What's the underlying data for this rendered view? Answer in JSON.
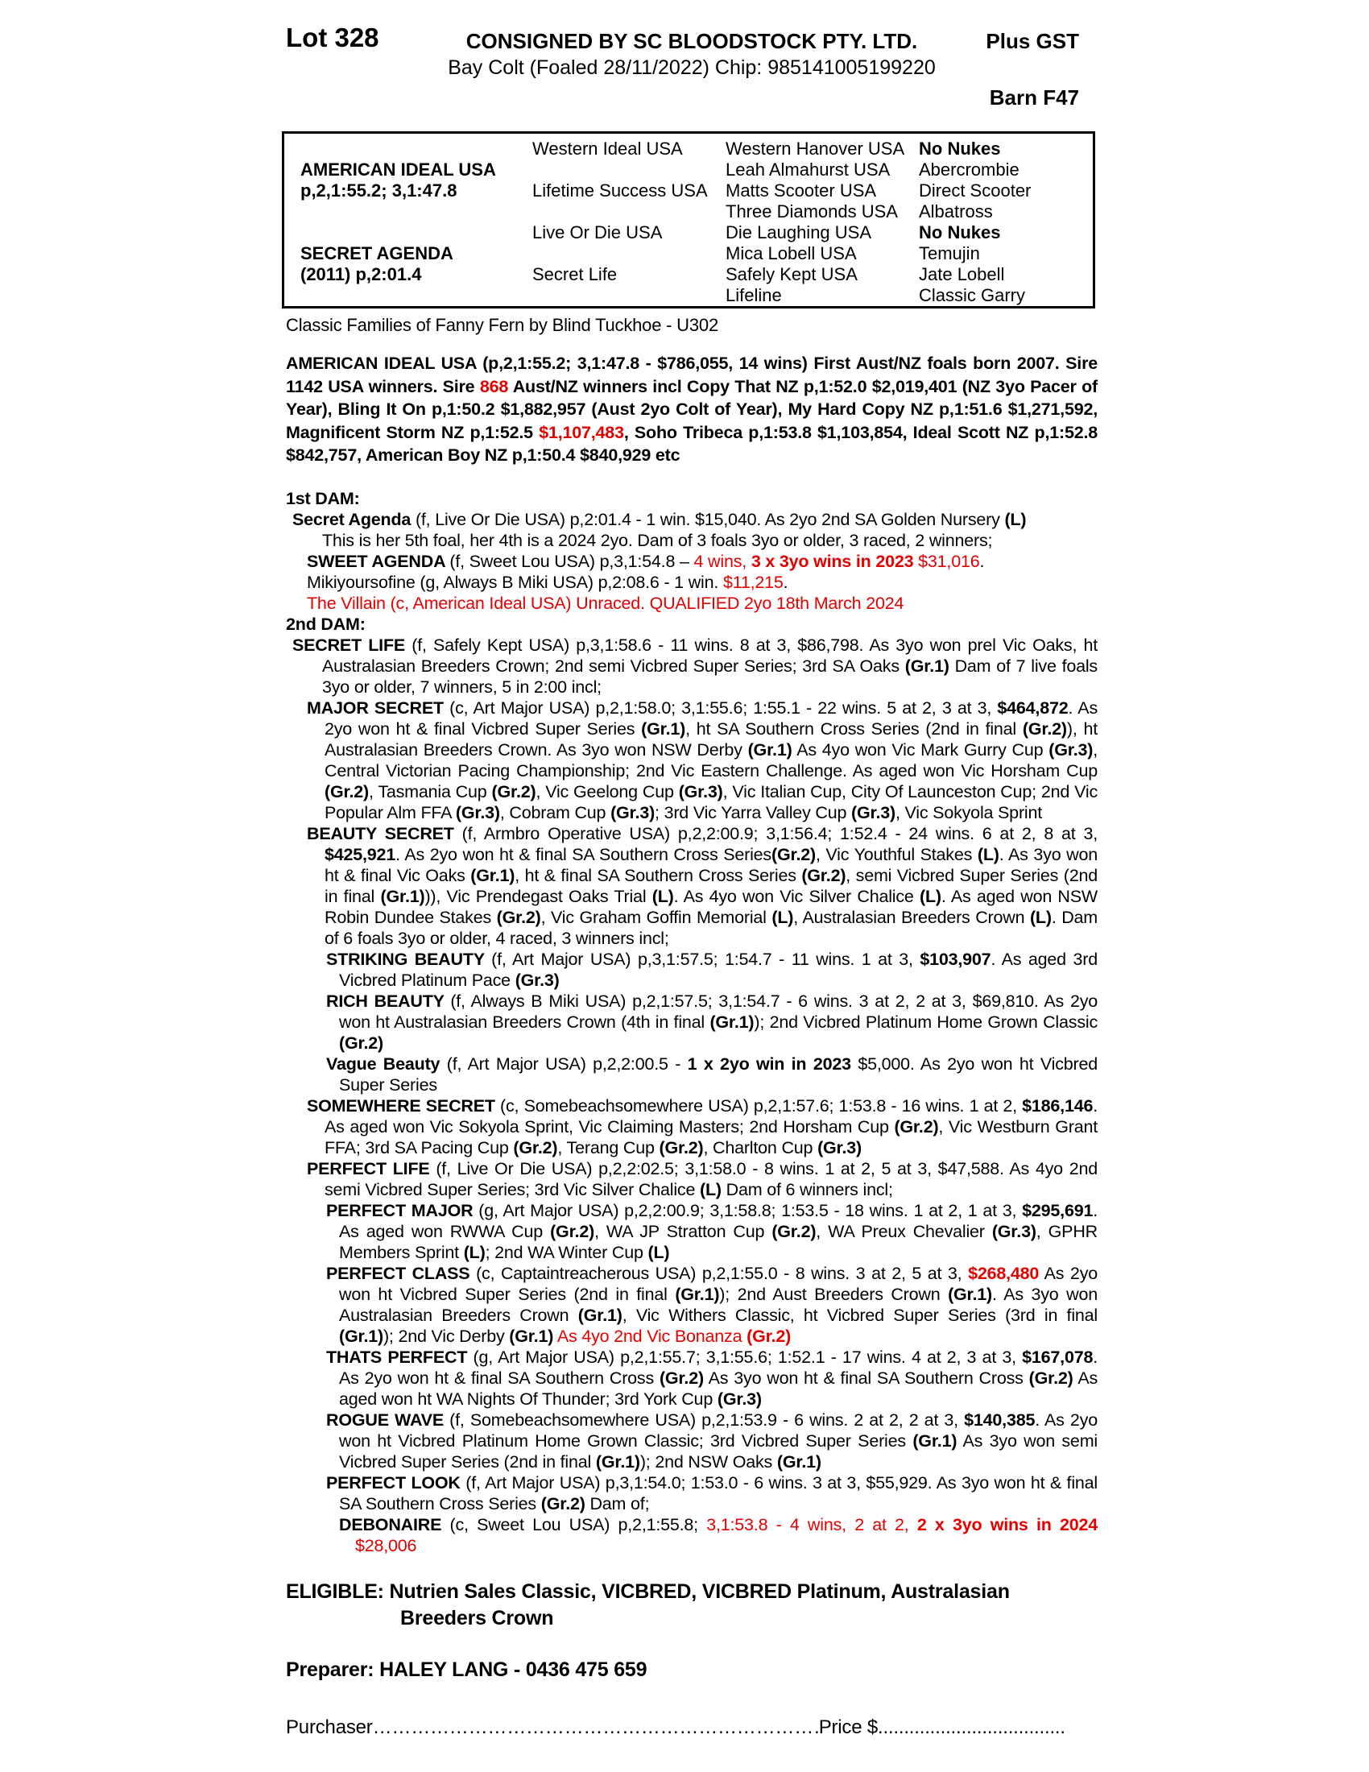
{
  "page": {
    "lot": "Lot 328",
    "consignor": "CONSIGNED BY SC BLOODSTOCK PTY. LTD.",
    "description": "Bay Colt (Foaled 28/11/2022) Chip: 985141005199220",
    "gst": "Plus GST",
    "barn": "Barn F47"
  },
  "colors": {
    "accent_red": "#e50000",
    "text": "#000000",
    "background": "#ffffff"
  },
  "pedigree_table": {
    "sire": {
      "name": "AMERICAN IDEAL USA",
      "record": "p,2,1:55.2; 3,1:47.8"
    },
    "dam": {
      "name": "SECRET AGENDA",
      "record": "(2011) p,2:01.4"
    },
    "gen2": [
      "Western Ideal USA",
      "Lifetime Success USA",
      "Live Or Die USA",
      "Secret Life"
    ],
    "gen3": [
      "Western Hanover USA",
      "Leah Almahurst USA",
      "Matts Scooter USA",
      "Three Diamonds USA",
      "Die Laughing USA",
      "Mica Lobell USA",
      "Safely Kept USA",
      "Lifeline"
    ],
    "gen4": [
      [
        {
          "t": "No Nukes",
          "b": 1
        }
      ],
      [
        {
          "t": "Abercrombie"
        }
      ],
      [
        {
          "t": "Direct Scooter"
        }
      ],
      [
        {
          "t": "Albatross"
        }
      ],
      [
        {
          "t": "No Nukes",
          "b": 1
        }
      ],
      [
        {
          "t": "Temujin"
        }
      ],
      [
        {
          "t": "Jate Lobell"
        }
      ],
      [
        {
          "t": "Classic Garry"
        }
      ]
    ]
  },
  "family_note": "Classic Families of Fanny Fern by Blind Tuckhoe - U302",
  "sire_paragraph": {
    "runs": [
      {
        "t": "AMERICAN IDEAL USA (p,2,1:55.2; 3,1:47.8 - $786,055, 14 wins) First Aust/NZ foals born 2007. Sire 1142 USA winners. Sire ",
        "b": 1
      },
      {
        "t": "868",
        "b": 1,
        "r": 1
      },
      {
        "t": " Aust/NZ winners incl Copy That NZ p,1:52.0 $2,019,401 (NZ 3yo Pacer of Year), Bling It On p,1:50.2 $1,882,957 (Aust 2yo Colt of Year), My Hard Copy NZ p,1:51.6 $1,271,592, Magnificent Storm NZ p,1:52.5 ",
        "b": 1
      },
      {
        "t": "$1,107,483",
        "b": 1,
        "r": 1
      },
      {
        "t": ", Soho Tribeca p,1:53.8 $1,103,854, Ideal Scott NZ p,1:52.8 $842,757, American Boy NZ p,1:50.4 $840,929 etc",
        "b": 1
      }
    ]
  },
  "body": [
    {
      "name": "first-dam-heading",
      "indent": 0,
      "runs": [
        {
          "t": "1st DAM:",
          "b": 1
        }
      ]
    },
    {
      "name": "secret-agenda-entry",
      "indent": 1,
      "runs": [
        {
          "t": "Secret Agenda ",
          "b": 1
        },
        {
          "t": "(f, Live Or Die USA) p,2:01.4 - 1 win. $15,040. As 2yo 2nd SA Golden Nursery "
        },
        {
          "t": "(L)",
          "b": 1
        }
      ]
    },
    {
      "name": "secret-agenda-note",
      "indent": 1,
      "cont": 1,
      "runs": [
        {
          "t": "This is her 5th foal, her 4th is a 2024 2yo. Dam of 3 foals 3yo or older, 3 raced, 2 winners;"
        }
      ]
    },
    {
      "name": "sweet-agenda-entry",
      "indent": 2,
      "runs": [
        {
          "t": "SWEET AGENDA ",
          "b": 1
        },
        {
          "t": "(f, Sweet Lou USA) p,3,1:54.8 – "
        },
        {
          "t": "4 wins, ",
          "r": 1
        },
        {
          "t": "3 x 3yo wins in 2023",
          "b": 1,
          "r": 1
        },
        {
          "t": " $31,016",
          "r": 1
        },
        {
          "t": "."
        }
      ]
    },
    {
      "name": "mikiyoursofine-entry",
      "indent": 2,
      "runs": [
        {
          "t": "Mikiyoursofine (g, Always B Miki USA) p,2:08.6 - 1 win. "
        },
        {
          "t": "$11,215",
          "r": 1
        },
        {
          "t": "."
        }
      ]
    },
    {
      "name": "the-villain-entry",
      "indent": 2,
      "runs": [
        {
          "t": "The Villain (c, American Ideal USA) Unraced. QUALIFIED 2yo 18th March 2024",
          "r": 1
        }
      ]
    },
    {
      "name": "second-dam-heading",
      "indent": 0,
      "runs": [
        {
          "t": "2nd DAM:",
          "b": 1
        }
      ]
    },
    {
      "name": "secret-life-entry",
      "indent": 1,
      "justify": 1,
      "runs": [
        {
          "t": "SECRET LIFE ",
          "b": 1
        },
        {
          "t": "(f, Safely Kept USA) p,3,1:58.6 - 11 wins. 8 at 3, $86,798. As 3yo won prel Vic Oaks, ht Australasian Breeders Crown; 2nd semi Vicbred Super Series; 3rd SA Oaks "
        },
        {
          "t": "(Gr.1)",
          "b": 1
        },
        {
          "t": " Dam of 7 live foals 3yo or older, 7 winners, 5 in 2:00 incl;"
        }
      ]
    },
    {
      "name": "major-secret-entry",
      "indent": 2,
      "justify": 1,
      "runs": [
        {
          "t": "MAJOR SECRET ",
          "b": 1
        },
        {
          "t": "(c, Art Major USA) p,2,1:58.0; 3,1:55.6; 1:55.1 - 22 wins. 5 at 2, 3 at 3, "
        },
        {
          "t": "$464,872",
          "b": 1
        },
        {
          "t": ". As 2yo won ht & final Vicbred Super Series "
        },
        {
          "t": "(Gr.1)",
          "b": 1
        },
        {
          "t": ", ht SA Southern Cross Series (2nd in final "
        },
        {
          "t": "(Gr.2)",
          "b": 1
        },
        {
          "t": "), ht Australasian Breeders Crown. As 3yo won NSW Derby "
        },
        {
          "t": "(Gr.1)",
          "b": 1
        },
        {
          "t": " As 4yo won Vic Mark Gurry Cup "
        },
        {
          "t": "(Gr.3)",
          "b": 1
        },
        {
          "t": ", Central Victorian Pacing Championship; 2nd Vic Eastern Challenge. As aged won Vic Horsham Cup "
        },
        {
          "t": "(Gr.2)",
          "b": 1
        },
        {
          "t": ", Tasmania Cup "
        },
        {
          "t": "(Gr.2)",
          "b": 1
        },
        {
          "t": ", Vic Geelong Cup "
        },
        {
          "t": "(Gr.3)",
          "b": 1
        },
        {
          "t": ", Vic Italian Cup, City Of Launceston Cup; 2nd Vic Popular Alm FFA "
        },
        {
          "t": "(Gr.3)",
          "b": 1
        },
        {
          "t": ", Cobram Cup "
        },
        {
          "t": "(Gr.3)",
          "b": 1
        },
        {
          "t": "; 3rd Vic Yarra Valley Cup "
        },
        {
          "t": "(Gr.3)",
          "b": 1
        },
        {
          "t": ", Vic Sokyola Sprint"
        }
      ]
    },
    {
      "name": "beauty-secret-entry",
      "indent": 2,
      "justify": 1,
      "runs": [
        {
          "t": "BEAUTY SECRET ",
          "b": 1
        },
        {
          "t": "(f, Armbro Operative USA) p,2,2:00.9; 3,1:56.4; 1:52.4 - 24 wins. 6 at 2, 8 at 3, "
        },
        {
          "t": "$425,921",
          "b": 1
        },
        {
          "t": ". As 2yo won ht & final SA Southern Cross Series"
        },
        {
          "t": "(Gr.2)",
          "b": 1
        },
        {
          "t": ", Vic Youthful Stakes "
        },
        {
          "t": "(L)",
          "b": 1
        },
        {
          "t": ". As 3yo won ht & final Vic Oaks "
        },
        {
          "t": "(Gr.1)",
          "b": 1
        },
        {
          "t": ", ht & final SA Southern Cross Series "
        },
        {
          "t": "(Gr.2)",
          "b": 1
        },
        {
          "t": ", semi Vicbred Super Series (2nd in final "
        },
        {
          "t": "(Gr.1)",
          "b": 1
        },
        {
          "t": ")), Vic Prendegast Oaks Trial "
        },
        {
          "t": "(L)",
          "b": 1
        },
        {
          "t": ". As 4yo won Vic Silver Chalice "
        },
        {
          "t": "(L)",
          "b": 1
        },
        {
          "t": ". As aged won NSW Robin Dundee Stakes "
        },
        {
          "t": "(Gr.2)",
          "b": 1
        },
        {
          "t": ", Vic Graham Goffin Memorial "
        },
        {
          "t": "(L)",
          "b": 1
        },
        {
          "t": ", Australasian Breeders Crown "
        },
        {
          "t": "(L)",
          "b": 1
        },
        {
          "t": ". Dam of 6 foals 3yo or older, 4 raced, 3 winners incl;"
        }
      ]
    },
    {
      "name": "striking-beauty-entry",
      "indent": 3,
      "justify": 1,
      "runs": [
        {
          "t": "STRIKING BEAUTY ",
          "b": 1
        },
        {
          "t": "(f, Art Major USA) p,3,1:57.5; 1:54.7 - 11 wins. 1 at 3, "
        },
        {
          "t": "$103,907",
          "b": 1
        },
        {
          "t": ". As aged 3rd Vicbred Platinum Pace "
        },
        {
          "t": "(Gr.3)",
          "b": 1
        }
      ]
    },
    {
      "name": "rich-beauty-entry",
      "indent": 3,
      "justify": 1,
      "runs": [
        {
          "t": "RICH BEAUTY ",
          "b": 1
        },
        {
          "t": "(f, Always B Miki USA) p,2,1:57.5; 3,1:54.7 - 6 wins. 3 at 2, 2 at 3, $69,810. As 2yo won ht Australasian Breeders Crown (4th in final "
        },
        {
          "t": "(Gr.1)",
          "b": 1
        },
        {
          "t": "); 2nd Vicbred Platinum Home Grown Classic "
        },
        {
          "t": "(Gr.2)",
          "b": 1
        }
      ]
    },
    {
      "name": "vague-beauty-entry",
      "indent": 3,
      "justify": 1,
      "runs": [
        {
          "t": "Vague Beauty ",
          "b": 1
        },
        {
          "t": "(f, Art Major USA) p,2,2:00.5 - "
        },
        {
          "t": "1 x 2yo win in 2023",
          "b": 1
        },
        {
          "t": " $5,000. As 2yo won ht Vicbred Super Series"
        }
      ]
    },
    {
      "name": "somewhere-secret-entry",
      "indent": 2,
      "justify": 1,
      "runs": [
        {
          "t": "SOMEWHERE SECRET ",
          "b": 1
        },
        {
          "t": "(c, Somebeachsomewhere USA) p,2,1:57.6; 1:53.8 - 16 wins. 1 at 2, "
        },
        {
          "t": "$186,146",
          "b": 1
        },
        {
          "t": ". As aged won Vic Sokyola Sprint, Vic Claiming Masters; 2nd Horsham Cup "
        },
        {
          "t": "(Gr.2)",
          "b": 1
        },
        {
          "t": ", Vic Westburn Grant FFA; 3rd SA Pacing Cup "
        },
        {
          "t": "(Gr.2)",
          "b": 1
        },
        {
          "t": ", Terang Cup "
        },
        {
          "t": "(Gr.2)",
          "b": 1
        },
        {
          "t": ", Charlton Cup "
        },
        {
          "t": "(Gr.3)",
          "b": 1
        }
      ]
    },
    {
      "name": "perfect-life-entry",
      "indent": 2,
      "justify": 1,
      "runs": [
        {
          "t": "PERFECT LIFE ",
          "b": 1
        },
        {
          "t": "(f, Live Or Die USA) p,2,2:02.5; 3,1:58.0 - 8 wins. 1 at 2, 5 at 3, $47,588. As 4yo 2nd semi Vicbred Super Series; 3rd Vic Silver Chalice "
        },
        {
          "t": "(L)",
          "b": 1
        },
        {
          "t": " Dam of 6 winners incl;"
        }
      ]
    },
    {
      "name": "perfect-major-entry",
      "indent": 3,
      "justify": 1,
      "runs": [
        {
          "t": "PERFECT MAJOR ",
          "b": 1
        },
        {
          "t": "(g, Art Major USA) p,2,2:00.9; 3,1:58.8; 1:53.5 - 18 wins. 1 at 2, 1 at 3, "
        },
        {
          "t": "$295,691",
          "b": 1
        },
        {
          "t": ". As aged won RWWA Cup "
        },
        {
          "t": "(Gr.2)",
          "b": 1
        },
        {
          "t": ", WA JP Stratton Cup "
        },
        {
          "t": "(Gr.2)",
          "b": 1
        },
        {
          "t": ", WA Preux Chevalier "
        },
        {
          "t": "(Gr.3)",
          "b": 1
        },
        {
          "t": ", GPHR Members Sprint "
        },
        {
          "t": "(L)",
          "b": 1
        },
        {
          "t": "; 2nd WA Winter Cup "
        },
        {
          "t": "(L)",
          "b": 1
        }
      ]
    },
    {
      "name": "perfect-class-entry",
      "indent": 3,
      "justify": 1,
      "runs": [
        {
          "t": "PERFECT CLASS ",
          "b": 1
        },
        {
          "t": "(c, Captaintreacherous USA) p,2,1:55.0 - 8 wins. 3 at 2, 5 at 3, "
        },
        {
          "t": "$268,480",
          "b": 1,
          "r": 1
        },
        {
          "t": " As 2yo won ht Vicbred Super Series (2nd in final "
        },
        {
          "t": "(Gr.1)",
          "b": 1
        },
        {
          "t": "); 2nd Aust Breeders Crown "
        },
        {
          "t": "(Gr.1)",
          "b": 1
        },
        {
          "t": ". As 3yo won Australasian Breeders Crown "
        },
        {
          "t": "(Gr.1)",
          "b": 1
        },
        {
          "t": ", Vic Withers Classic, ht Vicbred Super Series (3rd in final "
        },
        {
          "t": "(Gr.1)",
          "b": 1
        },
        {
          "t": "); 2nd Vic Derby "
        },
        {
          "t": "(Gr.1)",
          "b": 1
        },
        {
          "t": " "
        },
        {
          "t": "As 4yo 2nd Vic Bonanza ",
          "r": 1
        },
        {
          "t": "(Gr.2)",
          "b": 1,
          "r": 1
        }
      ]
    },
    {
      "name": "thats-perfect-entry",
      "indent": 3,
      "justify": 1,
      "runs": [
        {
          "t": "THATS PERFECT ",
          "b": 1
        },
        {
          "t": "(g, Art Major USA) p,2,1:55.7; 3,1:55.6; 1:52.1 - 17 wins. 4 at 2, 3 at 3, "
        },
        {
          "t": "$167,078",
          "b": 1
        },
        {
          "t": ". As 2yo won ht & final SA Southern Cross "
        },
        {
          "t": "(Gr.2)",
          "b": 1
        },
        {
          "t": " As 3yo won ht & final SA Southern Cross "
        },
        {
          "t": "(Gr.2)",
          "b": 1
        },
        {
          "t": " As aged won ht WA Nights Of Thunder; 3rd York Cup "
        },
        {
          "t": "(Gr.3)",
          "b": 1
        }
      ]
    },
    {
      "name": "rogue-wave-entry",
      "indent": 3,
      "justify": 1,
      "runs": [
        {
          "t": "ROGUE WAVE ",
          "b": 1
        },
        {
          "t": "(f, Somebeachsomewhere USA) p,2,1:53.9 - 6 wins. 2 at 2, 2 at 3, "
        },
        {
          "t": "$140,385",
          "b": 1
        },
        {
          "t": ". As 2yo won ht Vicbred Platinum Home Grown Classic; 3rd Vicbred Super Series "
        },
        {
          "t": "(Gr.1)",
          "b": 1
        },
        {
          "t": " As 3yo won semi Vicbred Super Series (2nd in final "
        },
        {
          "t": "(Gr.1)",
          "b": 1
        },
        {
          "t": "); 2nd NSW Oaks "
        },
        {
          "t": "(Gr.1)",
          "b": 1
        }
      ]
    },
    {
      "name": "perfect-look-entry",
      "indent": 3,
      "justify": 1,
      "runs": [
        {
          "t": "PERFECT LOOK ",
          "b": 1
        },
        {
          "t": "(f, Art Major USA) p,3,1:54.0; 1:53.0 - 6 wins. 3 at 3, $55,929. As 3yo won ht & final SA Southern Cross Series "
        },
        {
          "t": "(Gr.2)",
          "b": 1
        },
        {
          "t": " Dam of;"
        }
      ]
    },
    {
      "name": "debonaire-entry",
      "indent": 4,
      "justify": 1,
      "runs": [
        {
          "t": "DEBONAIRE ",
          "b": 1
        },
        {
          "t": "(c, Sweet Lou USA) p,2,1:55.8; "
        },
        {
          "t": "3,1:53.8 - 4 wins, 2 at 2, ",
          "r": 1
        },
        {
          "t": "2 x 3yo wins in 2024",
          "b": 1,
          "r": 1
        },
        {
          "t": " $28,006",
          "r": 1
        }
      ]
    }
  ],
  "eligible": {
    "line1": "ELIGIBLE: Nutrien Sales Classic, VICBRED, VICBRED Platinum, Australasian",
    "line2": "Breeders Crown"
  },
  "preparer": "Preparer: HALEY LANG - 0436 475 659",
  "footer": {
    "purchaser_label": "Purchaser",
    "purchaser_leader": "…………………………………………………………………………………………",
    "price_label": "Price $",
    "price_leader": "........................................................"
  }
}
